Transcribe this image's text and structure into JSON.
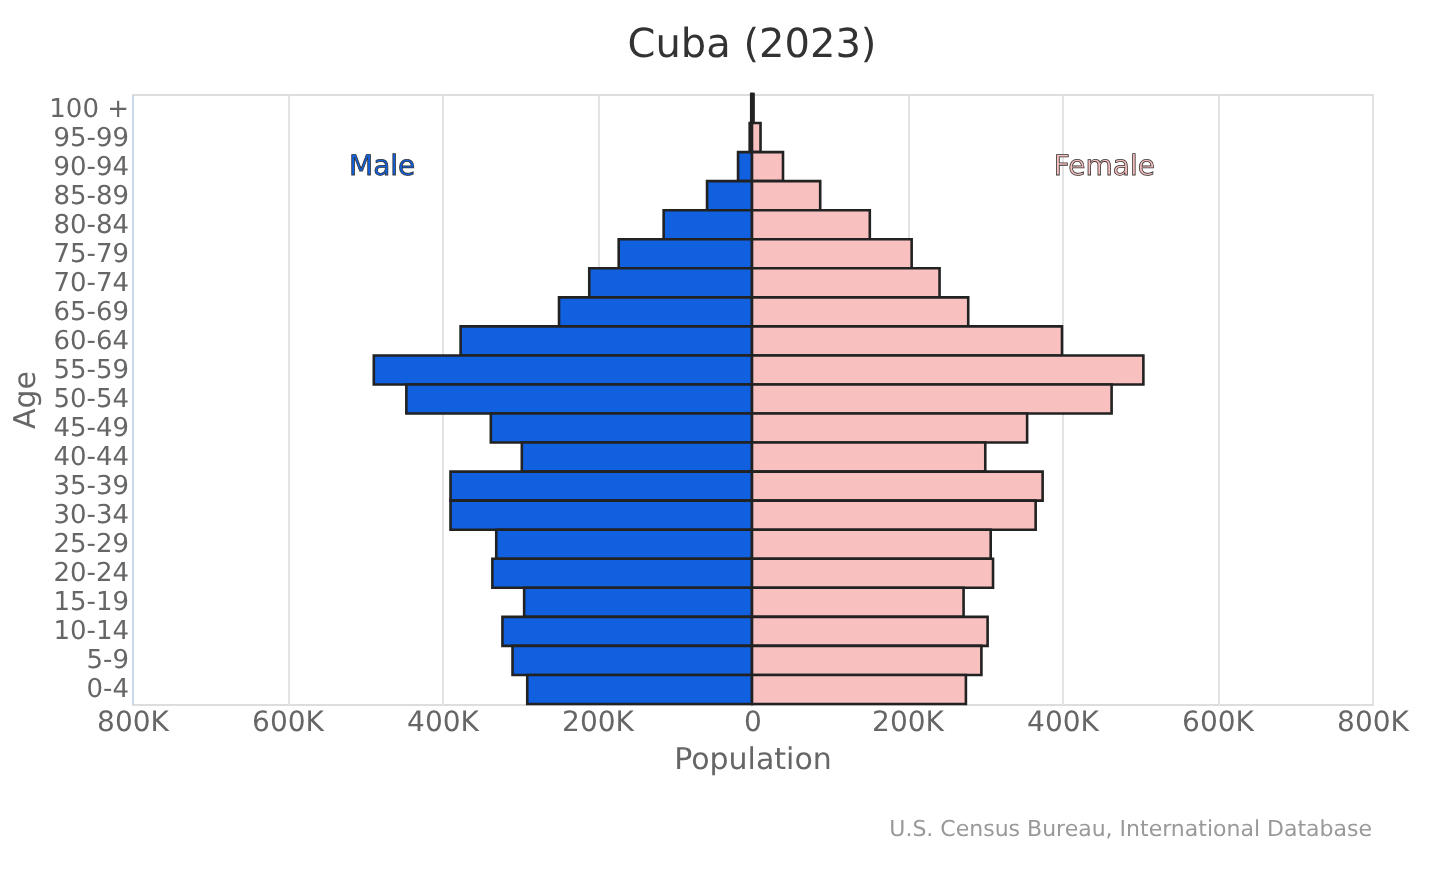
{
  "chart_data": {
    "type": "bar",
    "orientation": "horizontal",
    "title": "Cuba (2023)",
    "xlabel": "Population",
    "ylabel": "Age",
    "categories": [
      "100 +",
      "95-99",
      "90-94",
      "85-89",
      "80-84",
      "75-79",
      "70-74",
      "65-69",
      "60-64",
      "55-59",
      "50-54",
      "45-49",
      "40-44",
      "35-39",
      "30-34",
      "25-29",
      "20-24",
      "15-19",
      "10-14",
      "5-9",
      "0-4"
    ],
    "series": [
      {
        "name": "Male",
        "color": "#1060e0",
        "values": [
          -1000,
          -3000,
          -18000,
          -58000,
          -114000,
          -172000,
          -210000,
          -249000,
          -376000,
          -488000,
          -446000,
          -337000,
          -297000,
          -389000,
          -389000,
          -330000,
          -335000,
          -294000,
          -322000,
          -309000,
          -290000
        ]
      },
      {
        "name": "Female",
        "color": "#f9c0c0",
        "values": [
          2000,
          11000,
          40000,
          88000,
          152000,
          206000,
          242000,
          279000,
          400000,
          505000,
          464000,
          355000,
          301000,
          375000,
          366000,
          308000,
          311000,
          273000,
          304000,
          296000,
          276000
        ]
      }
    ],
    "xlim": [
      -800000,
      800000
    ],
    "xticks": [
      {
        "value": -800000,
        "label": "800K"
      },
      {
        "value": -600000,
        "label": "600K"
      },
      {
        "value": -400000,
        "label": "400K"
      },
      {
        "value": -200000,
        "label": "200K"
      },
      0,
      {
        "value": 200000,
        "label": "200K"
      },
      {
        "value": 400000,
        "label": "400K"
      },
      {
        "value": 600000,
        "label": "600K"
      },
      {
        "value": 800000,
        "label": "800K"
      }
    ],
    "grid": "x",
    "stacked": true,
    "annotations": [
      "U.S. Census Bureau, International Database"
    ]
  }
}
